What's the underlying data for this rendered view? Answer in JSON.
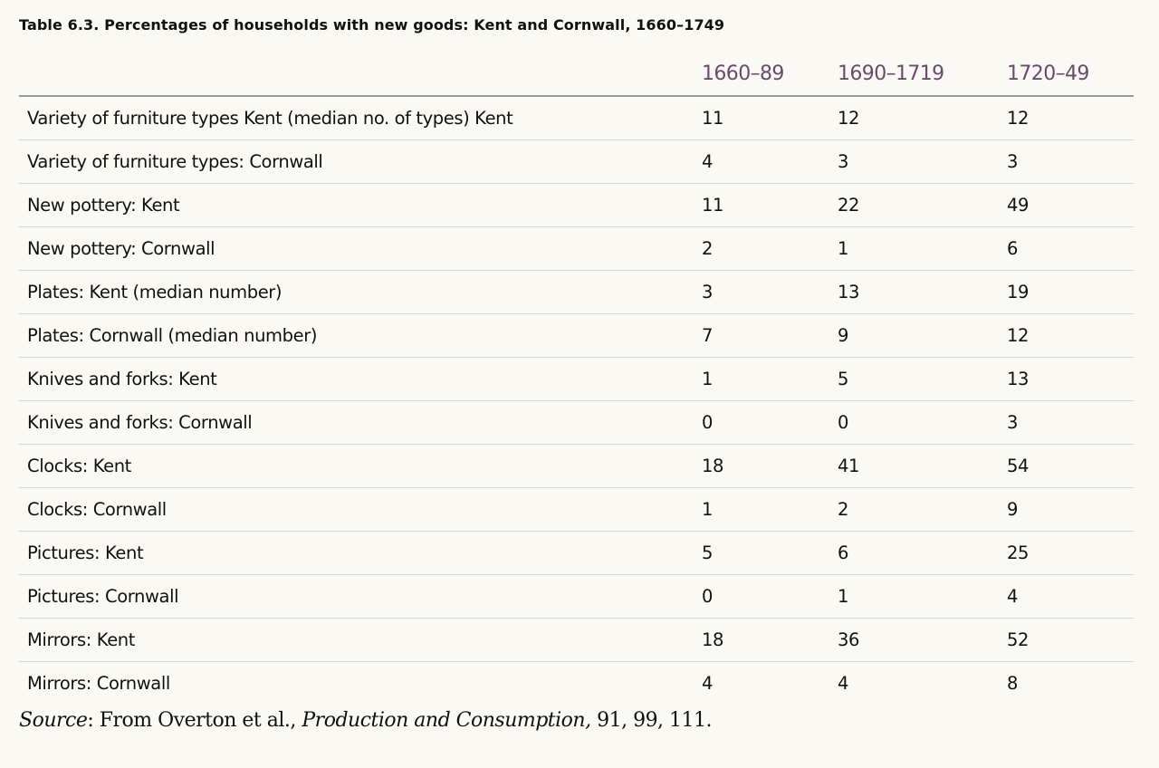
{
  "table": {
    "caption": "Table 6.3. Percentages of households with new goods: Kent and Cornwall, 1660–1749",
    "columns": [
      "",
      "1660–89",
      "1690–1719",
      "1720–49"
    ],
    "rows": [
      {
        "label": "Variety of furniture types Kent (median no. of types) Kent",
        "values": [
          "11",
          "12",
          "12"
        ]
      },
      {
        "label": "Variety of furniture types: Cornwall",
        "values": [
          "4",
          "3",
          "3"
        ]
      },
      {
        "label": "New pottery: Kent",
        "values": [
          "11",
          "22",
          "49"
        ]
      },
      {
        "label": "New pottery: Cornwall",
        "values": [
          "2",
          "1",
          "6"
        ]
      },
      {
        "label": "Plates: Kent (median number)",
        "values": [
          "3",
          "13",
          "19"
        ]
      },
      {
        "label": "Plates: Cornwall (median number)",
        "values": [
          "7",
          "9",
          "12"
        ]
      },
      {
        "label": "Knives and forks: Kent",
        "values": [
          "1",
          "5",
          "13"
        ]
      },
      {
        "label": "Knives and forks: Cornwall",
        "values": [
          "0",
          "0",
          "3"
        ]
      },
      {
        "label": "Clocks: Kent",
        "values": [
          "18",
          "41",
          "54"
        ]
      },
      {
        "label": "Clocks: Cornwall",
        "values": [
          "1",
          "2",
          "9"
        ]
      },
      {
        "label": "Pictures: Kent",
        "values": [
          "5",
          "6",
          "25"
        ]
      },
      {
        "label": "Pictures: Cornwall",
        "values": [
          "0",
          "1",
          "4"
        ]
      },
      {
        "label": "Mirrors: Kent",
        "values": [
          "18",
          "36",
          "52"
        ]
      },
      {
        "label": "Mirrors: Cornwall",
        "values": [
          "4",
          "4",
          "8"
        ]
      }
    ]
  },
  "source": {
    "label": "Source",
    "prefix": ": From Overton et al., ",
    "title": "Production and Consumption,",
    "pages": " 91, 99, 111."
  },
  "colors": {
    "background": "#faf9f4",
    "header_text": "#6b4a6e",
    "rule": "#9a9a9a"
  }
}
